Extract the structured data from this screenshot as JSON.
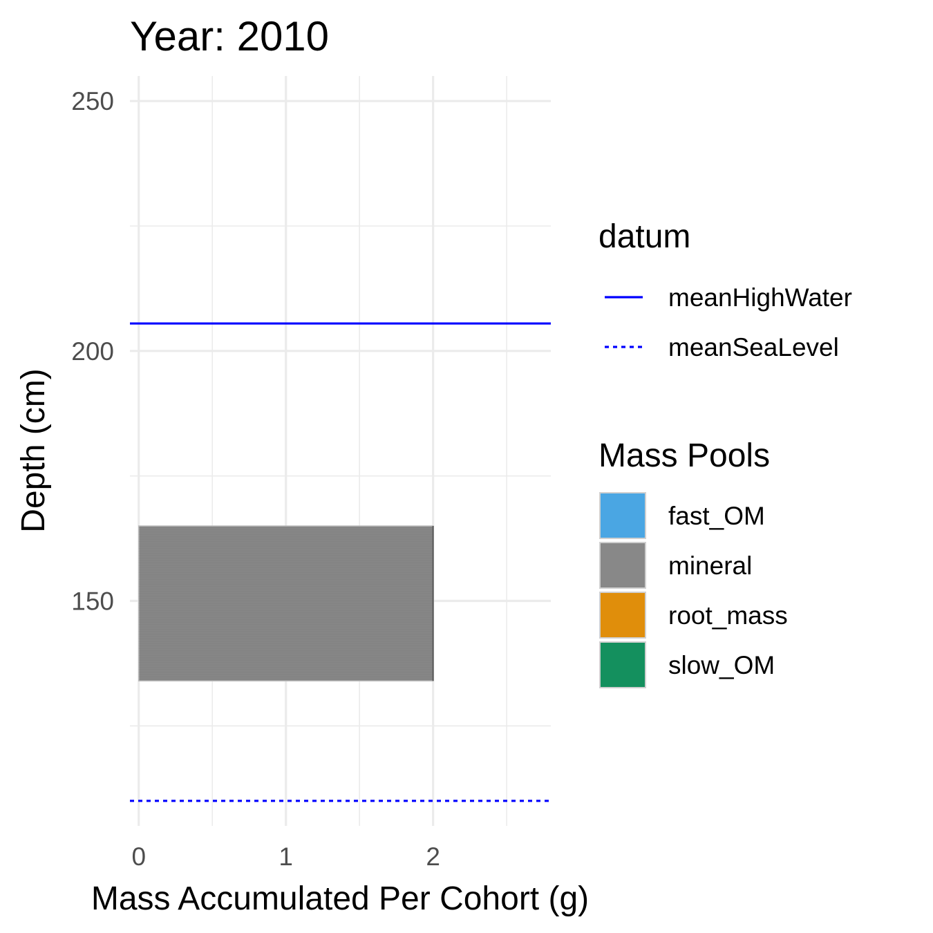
{
  "chart_data": {
    "type": "bar",
    "orientation": "horizontal",
    "title": "Year: 2010",
    "xlabel": "Mass Accumulated Per Cohort (g)",
    "ylabel": "Depth (cm)",
    "xlim": [
      -0.06,
      2.8
    ],
    "ylim": [
      105,
      255
    ],
    "x_ticks": [
      "0",
      "1",
      "2"
    ],
    "y_ticks": [
      "150",
      "200",
      "250"
    ],
    "grid": true,
    "bars": [
      {
        "series": "mineral",
        "x_min": 0,
        "x_max": 2,
        "depth_min": 134,
        "depth_max": 165
      }
    ],
    "reference_lines": [
      {
        "name": "meanHighWater",
        "depth": 205.5,
        "color": "#0000ff",
        "linetype": "solid"
      },
      {
        "name": "meanSeaLevel",
        "depth": 110,
        "color": "#0000ff",
        "linetype": "dotted"
      }
    ],
    "legend_position": "right",
    "legends": [
      {
        "title": "datum",
        "entries": [
          {
            "label": "meanHighWater",
            "linetype": "solid",
            "color": "#0000ff"
          },
          {
            "label": "meanSeaLevel",
            "linetype": "dotted",
            "color": "#0000ff"
          }
        ]
      },
      {
        "title": "Mass Pools",
        "entries": [
          {
            "label": "fast_OM",
            "color": "#4aa6e3"
          },
          {
            "label": "mineral",
            "color": "#888888"
          },
          {
            "label": "root_mass",
            "color": "#e08e0b"
          },
          {
            "label": "slow_OM",
            "color": "#14905e"
          }
        ]
      }
    ]
  }
}
